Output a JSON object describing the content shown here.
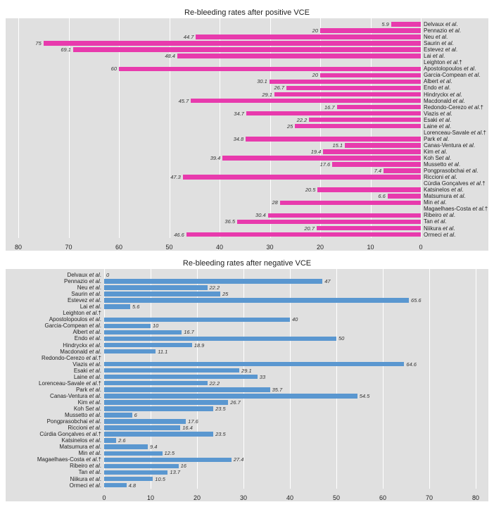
{
  "top_chart": {
    "title": "Re-bleeding rates after positive VCE",
    "type": "bar",
    "orientation": "horizontal",
    "reversed_axis": true,
    "xlim": [
      0,
      80
    ],
    "xtick_step": 10,
    "xticks": [
      80,
      70,
      60,
      50,
      40,
      30,
      20,
      10,
      0
    ],
    "bar_color": "#e83aad",
    "background_color": "#e0e0e0",
    "grid_color": "#ffffff",
    "label_fontsize": 8,
    "value_fontsize": 7.5,
    "value_fontstyle": "italic",
    "data": [
      {
        "label": "Delvaux et al.",
        "value": 5.9
      },
      {
        "label": "Pennazio et al.",
        "value": 20
      },
      {
        "label": "Neu et al.",
        "value": 44.7
      },
      {
        "label": "Saurin et al.",
        "value": 75
      },
      {
        "label": "Estevez et al.",
        "value": 69.1
      },
      {
        "label": "Lai et al.",
        "value": 48.4
      },
      {
        "label": "Leighton et al.†",
        "value": null
      },
      {
        "label": "Apostolopoulos  et al.",
        "value": 60
      },
      {
        "label": "Garcia-Compean et al.",
        "value": 20
      },
      {
        "label": "Albert et al.",
        "value": 30.1
      },
      {
        "label": "Endo et al.",
        "value": 26.7
      },
      {
        "label": "Hindryckx et al.",
        "value": 29.1
      },
      {
        "label": "Macdonald et al.",
        "value": 45.7
      },
      {
        "label": "Redondo-Cerezo et al.†",
        "value": 16.7
      },
      {
        "label": "Viazis et al.",
        "value": 34.7
      },
      {
        "label": "Esaki et al.",
        "value": 22.2
      },
      {
        "label": "Laine et al.",
        "value": 25
      },
      {
        "label": "Lorenceau-Savale et al.†",
        "value": null
      },
      {
        "label": "Park et al.",
        "value": 34.8
      },
      {
        "label": "Canas-Ventura et al.",
        "value": 15.1
      },
      {
        "label": "Kim et al.",
        "value": 19.4
      },
      {
        "label": "Koh Set al.",
        "value": 39.4
      },
      {
        "label": "Mussetto et al.",
        "value": 17.6
      },
      {
        "label": "Pongprasobchai et al.",
        "value": 7.4
      },
      {
        "label": "Riccioni et al.",
        "value": 47.3
      },
      {
        "label": "Cúrdia Gonçalves  et al.†",
        "value": null
      },
      {
        "label": "Katsinelos et al.",
        "value": 20.5
      },
      {
        "label": "Matsumura et al.",
        "value": 6.6
      },
      {
        "label": "Min et al.",
        "value": 28
      },
      {
        "label": "Magaelhaes-Costa et al.†",
        "value": null
      },
      {
        "label": "Ribeiro et al.",
        "value": 30.4
      },
      {
        "label": "Tan et al.",
        "value": 36.5
      },
      {
        "label": "Niikura et al.",
        "value": 20.7
      },
      {
        "label": "Ormeci et al.",
        "value": 46.6
      }
    ]
  },
  "bottom_chart": {
    "title": "Re-bleeding rates after negative VCE",
    "type": "bar",
    "orientation": "horizontal",
    "reversed_axis": false,
    "xlim": [
      0,
      80
    ],
    "xtick_step": 10,
    "xticks": [
      0,
      10,
      20,
      30,
      40,
      50,
      60,
      70,
      80
    ],
    "bar_color": "#5a97d0",
    "background_color": "#e0e0e0",
    "grid_color": "#ffffff",
    "label_fontsize": 8,
    "value_fontsize": 7.5,
    "value_fontstyle": "italic",
    "data": [
      {
        "label": "Delvaux et al.",
        "value": 0
      },
      {
        "label": "Pennazio et al.",
        "value": 47
      },
      {
        "label": "Neu et al.",
        "value": 22.2
      },
      {
        "label": "Saurin et al.",
        "value": 25
      },
      {
        "label": "Estevez et al.",
        "value": 65.6
      },
      {
        "label": "Lai et al.",
        "value": 5.6
      },
      {
        "label": "Leighton et al.†",
        "value": null
      },
      {
        "label": "Apostolopoulos  et al.",
        "value": 40
      },
      {
        "label": "Garcia-Compean et al.",
        "value": 10
      },
      {
        "label": "Albert et al.",
        "value": 16.7
      },
      {
        "label": "Endo et al.",
        "value": 50
      },
      {
        "label": "Hindryckx et al.",
        "value": 18.9
      },
      {
        "label": "Macdonald et al.",
        "value": 11.1
      },
      {
        "label": "Redondo-Cerezo et al.†",
        "value": null
      },
      {
        "label": "Viazis et al.",
        "value": 64.6
      },
      {
        "label": "Esaki et al.",
        "value": 29.1
      },
      {
        "label": "Laine et al.",
        "value": 33
      },
      {
        "label": "Lorenceau-Savale et al.†",
        "value": 22.2
      },
      {
        "label": "Park et al.",
        "value": 35.7
      },
      {
        "label": "Canas-Ventura et al.",
        "value": 54.5
      },
      {
        "label": "Kim et al.",
        "value": 26.7
      },
      {
        "label": "Koh Set al.",
        "value": 23.5
      },
      {
        "label": "Mussetto et al.",
        "value": 6
      },
      {
        "label": "Pongprasobchai et al.",
        "value": 17.6
      },
      {
        "label": "Riccioni et al.",
        "value": 16.4
      },
      {
        "label": "Cúrdia Gonçalves  et al.†",
        "value": 23.5
      },
      {
        "label": "Katsinelos et al.",
        "value": 2.6
      },
      {
        "label": "Matsumura et al.",
        "value": 9.4
      },
      {
        "label": "Min et al.",
        "value": 12.5
      },
      {
        "label": "Magaelhaes-Costa et al.†",
        "value": 27.4
      },
      {
        "label": "Ribeiro et al.",
        "value": 16
      },
      {
        "label": "Tan et al.",
        "value": 13.7
      },
      {
        "label": "Niikura et al.",
        "value": 10.5
      },
      {
        "label": "Ormeci et al.",
        "value": 4.8
      }
    ]
  }
}
